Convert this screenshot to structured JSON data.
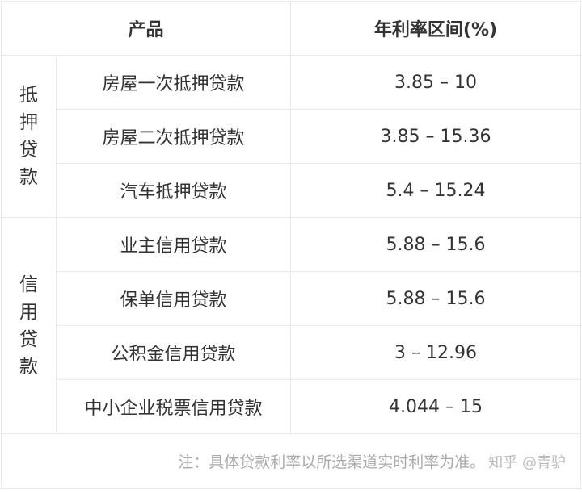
{
  "header": {
    "product": "产品",
    "rate_range": "年利率区间(%)"
  },
  "groups": [
    {
      "category_chars": [
        "抵",
        "押",
        "贷",
        "款"
      ],
      "rows": [
        {
          "product": "房屋一次抵押贷款",
          "rate": "3.85 – 10"
        },
        {
          "product": "房屋二次抵押贷款",
          "rate": "3.85 – 15.36"
        },
        {
          "product": "汽车抵押贷款",
          "rate": "5.4 – 15.24"
        }
      ]
    },
    {
      "category_chars": [
        "信",
        "用",
        "贷",
        "款"
      ],
      "rows": [
        {
          "product": "业主信用贷款",
          "rate": "5.88 – 15.6"
        },
        {
          "product": "保单信用贷款",
          "rate": "5.88 – 15.6"
        },
        {
          "product": "公积金信用贷款",
          "rate": "3 – 12.96"
        },
        {
          "product": "中小企业税票信用贷款",
          "rate": "4.044 – 15"
        }
      ]
    }
  ],
  "footer": {
    "note": "注：具体贷款利率以所选渠道实时利率为准。",
    "watermark": "知乎 @青驴"
  }
}
